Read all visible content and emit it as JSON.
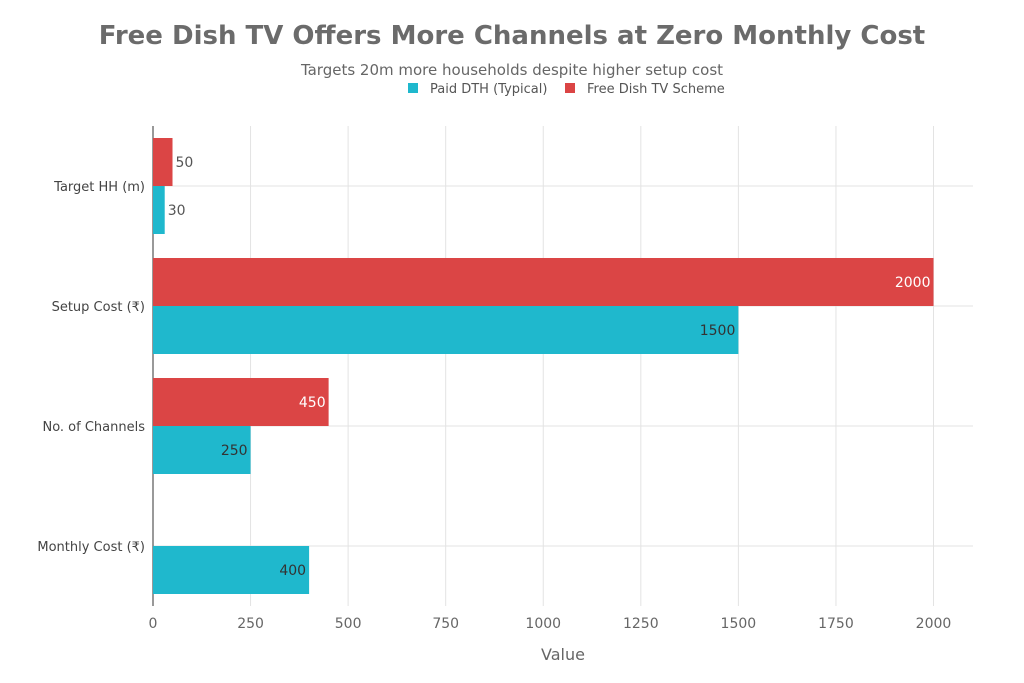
{
  "chart_data": {
    "type": "bar",
    "orientation": "horizontal",
    "title": "Free Dish TV Offers More Channels at Zero Monthly Cost",
    "subtitle": "Targets 20m more households despite higher setup cost",
    "xlabel": "Value",
    "ylabel": "",
    "xlim": [
      0,
      2100
    ],
    "xticks": [
      0,
      250,
      500,
      750,
      1000,
      1250,
      1500,
      1750,
      2000
    ],
    "grid": true,
    "legend_position": "top-center",
    "categories": [
      "Target HH (m)",
      "Setup Cost (₹)",
      "No. of Channels",
      "Monthly Cost (₹)"
    ],
    "series": [
      {
        "name": "Paid DTH (Typical)",
        "color": "#1fb8cd",
        "values": [
          30,
          1500,
          250,
          400
        ]
      },
      {
        "name": "Free Dish TV Scheme",
        "color": "#db4545",
        "values": [
          50,
          2000,
          450,
          0
        ]
      }
    ]
  }
}
